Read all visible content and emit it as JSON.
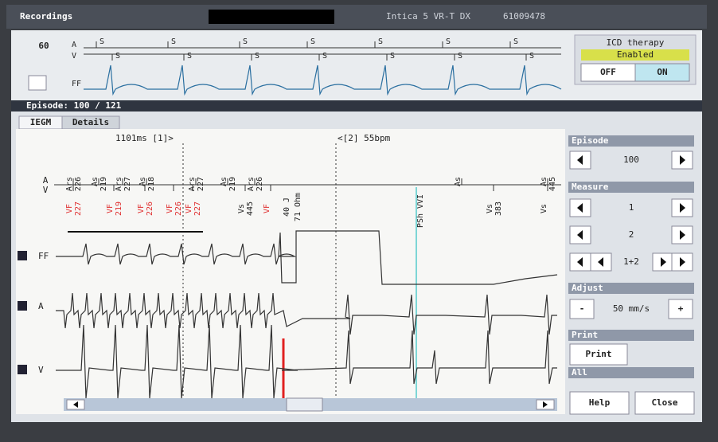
{
  "title_bar": {
    "title": "Recordings",
    "device": "Intica 5 VR-T DX",
    "serial": "61009478"
  },
  "strip": {
    "rate": "60",
    "channels": [
      "A",
      "V",
      "FF"
    ],
    "a_markers": [
      "S",
      "S",
      "S",
      "S",
      "S",
      "S",
      "S"
    ],
    "v_markers": [
      "S",
      "S",
      "S",
      "S",
      "S",
      "S",
      "S"
    ]
  },
  "icd_therapy": {
    "title": "ICD therapy",
    "status": "Enabled",
    "off": "OFF",
    "on": "ON"
  },
  "episode_header": "Episode: 100 / 121",
  "tabs": [
    "IEGM",
    "Details"
  ],
  "iegm": {
    "cursor1": "1101ms [1]>",
    "cursor2": "<[2] 55bpm",
    "axis_labels": [
      "A",
      "V"
    ],
    "a_markers": [
      {
        "type": "Ars",
        "interval": "226"
      },
      {
        "type": "As",
        "interval": "219"
      },
      {
        "type": "Ars",
        "interval": "227"
      },
      {
        "type": "As",
        "interval": "218"
      },
      {
        "type": "Ars",
        "interval": "227"
      },
      {
        "type": "As",
        "interval": "219"
      },
      {
        "type": "Ars",
        "interval": "226"
      },
      {
        "type": "As"
      },
      {
        "type": "As",
        "interval": "445"
      }
    ],
    "v_markers": [
      {
        "type": "VF",
        "interval": "227"
      },
      {
        "type": "VF",
        "interval": "219"
      },
      {
        "type": "VF",
        "interval": "226"
      },
      {
        "type": "VF",
        "interval": "226"
      },
      {
        "type": "VF",
        "interval": "227"
      },
      {
        "type": "Vs",
        "interval": "445"
      },
      {
        "type": "VF"
      },
      {
        "type": "Vs",
        "interval": "383"
      },
      {
        "type": "Vs"
      }
    ],
    "shock": [
      "40 J",
      "71 Ohm"
    ],
    "mode_switch": "PSh VVI",
    "channels": [
      "FF",
      "A",
      "V"
    ]
  },
  "side_panel": {
    "episode": {
      "header": "Episode",
      "value": "100"
    },
    "measure": {
      "header": "Measure",
      "cursor1": "1",
      "cursor2": "2",
      "both": "1+2"
    },
    "adjust": {
      "header": "Adjust",
      "minus": "-",
      "value": "50 mm/s",
      "plus": "+"
    },
    "print": {
      "header": "Print",
      "button": "Print",
      "scope": "All"
    },
    "help": "Help",
    "close": "Close"
  }
}
